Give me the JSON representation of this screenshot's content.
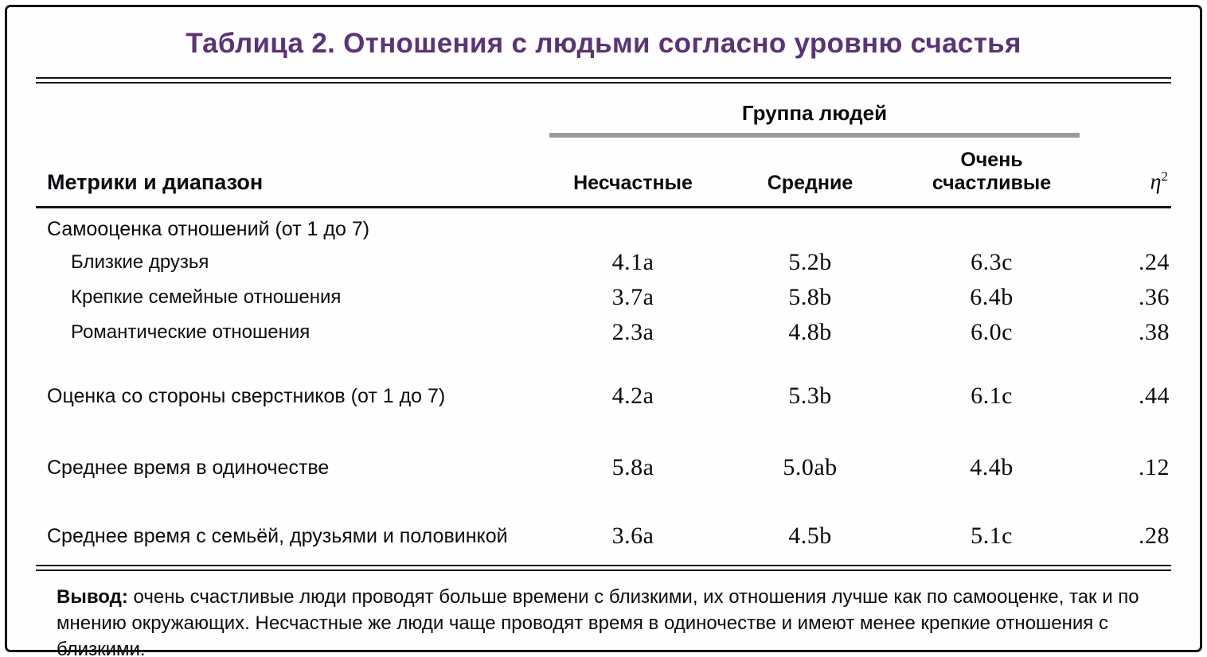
{
  "accent_color": "#5b3377",
  "chart_data": {
    "type": "table",
    "title": "Таблица 2. Отношения с людьми согласно уровню счастья",
    "group_header": "Группа людей",
    "row_header_label": "Метрики и диапазон",
    "group_columns": [
      "Несчастные",
      "Средние",
      "Очень счастливые"
    ],
    "effect_size_column": {
      "symbol": "η",
      "superscript": "2"
    },
    "rows": [
      {
        "label": "Самооценка отношений (от 1 до 7)",
        "kind": "section-header",
        "values": [
          "",
          "",
          "",
          ""
        ]
      },
      {
        "label": "Близкие друзья",
        "kind": "indented",
        "values": [
          "4.1a",
          "5.2b",
          "6.3c",
          ".24"
        ]
      },
      {
        "label": "Крепкие семейные отношения",
        "kind": "indented",
        "values": [
          "3.7a",
          "5.8b",
          "6.4b",
          ".36"
        ]
      },
      {
        "label": "Романтические отношения",
        "kind": "indented",
        "values": [
          "2.3a",
          "4.8b",
          "6.0c",
          ".38"
        ]
      },
      {
        "label": "Оценка со стороны сверстников (от 1 до 7)",
        "kind": "standalone",
        "values": [
          "4.2a",
          "5.3b",
          "6.1c",
          ".44"
        ]
      },
      {
        "label": "Среднее время в одиночестве",
        "kind": "standalone",
        "values": [
          "5.8a",
          "5.0ab",
          "4.4b",
          ".12"
        ]
      },
      {
        "label": "Среднее время с семьёй, друзьями и половинкой",
        "kind": "standalone",
        "values": [
          "3.6a",
          "4.5b",
          "5.1c",
          ".28"
        ]
      }
    ],
    "note_label": "Вывод:",
    "note_text": "очень счастливые люди проводят больше времени с близкими, их отношения лучше как по самооценке, так и по мнению окружающих. Несчастные же люди чаще проводят время в одиночестве и имеют менее крепкие отношения с близкими."
  }
}
